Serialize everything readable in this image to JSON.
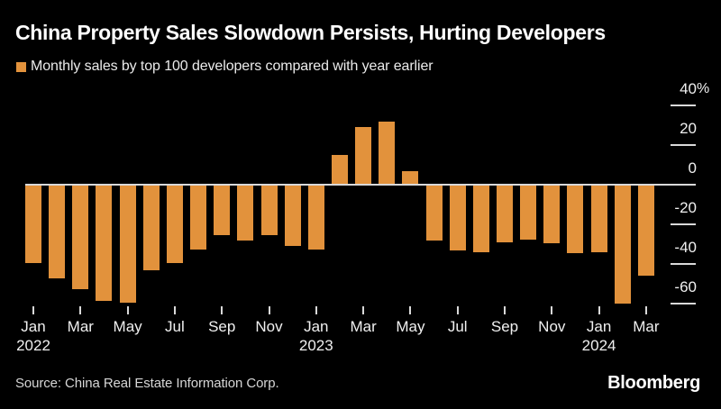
{
  "header": {
    "title": "China Property Sales Slowdown Persists, Hurting Developers",
    "legend_label": "Monthly sales by top 100 developers compared with year earlier"
  },
  "footer": {
    "source": "Source: China Real Estate Information Corp.",
    "brand": "Bloomberg"
  },
  "colors": {
    "background": "#000000",
    "bar": "#e2923c",
    "axis": "#d9d9d9",
    "title_text": "#ffffff",
    "label_text": "#f0f0f0",
    "source_text": "#d6d6d6"
  },
  "chart_data": {
    "type": "bar",
    "title": "China Property Sales Slowdown Persists, Hurting Developers",
    "series_label": "Monthly sales by top 100 developers compared with year earlier",
    "unit": "% year-over-year",
    "grid": "zero-line-only",
    "legend_position": "top-left",
    "y_axis_side": "right",
    "ylim": [
      -70,
      45
    ],
    "categories": [
      "Jan 2022",
      "Feb 2022",
      "Mar 2022",
      "Apr 2022",
      "May 2022",
      "Jun 2022",
      "Jul 2022",
      "Aug 2022",
      "Sep 2022",
      "Oct 2022",
      "Nov 2022",
      "Dec 2022",
      "Jan 2023",
      "Feb 2023",
      "Mar 2023",
      "Apr 2023",
      "May 2023",
      "Jun 2023",
      "Jul 2023",
      "Aug 2023",
      "Sep 2023",
      "Oct 2023",
      "Nov 2023",
      "Dec 2023",
      "Jan 2024",
      "Feb 2024",
      "Mar 2024"
    ],
    "values": [
      -39.6,
      -47.2,
      -52.7,
      -58.6,
      -59.4,
      -43.0,
      -39.7,
      -32.9,
      -25.4,
      -28.4,
      -25.5,
      -30.8,
      -32.5,
      14.9,
      29.2,
      31.6,
      6.7,
      -28.1,
      -33.1,
      -33.9,
      -29.2,
      -27.5,
      -29.6,
      -34.6,
      -34.2,
      -60.0,
      -45.8
    ],
    "y_ticks": [
      {
        "label": "40",
        "suffix": "%",
        "value": 40
      },
      {
        "label": "20",
        "suffix": "",
        "value": 20
      },
      {
        "label": "0",
        "suffix": "",
        "value": 0
      },
      {
        "label": "-20",
        "suffix": "",
        "value": -20
      },
      {
        "label": "-40",
        "suffix": "",
        "value": -40
      },
      {
        "label": "-60",
        "suffix": "",
        "value": -60
      }
    ],
    "x_ticks": [
      {
        "index": 0,
        "label": "Jan",
        "year": "2022"
      },
      {
        "index": 2,
        "label": "Mar",
        "year": ""
      },
      {
        "index": 4,
        "label": "May",
        "year": ""
      },
      {
        "index": 6,
        "label": "Jul",
        "year": ""
      },
      {
        "index": 8,
        "label": "Sep",
        "year": ""
      },
      {
        "index": 10,
        "label": "Nov",
        "year": ""
      },
      {
        "index": 12,
        "label": "Jan",
        "year": "2023"
      },
      {
        "index": 14,
        "label": "Mar",
        "year": ""
      },
      {
        "index": 16,
        "label": "May",
        "year": ""
      },
      {
        "index": 18,
        "label": "Jul",
        "year": ""
      },
      {
        "index": 20,
        "label": "Sep",
        "year": ""
      },
      {
        "index": 22,
        "label": "Nov",
        "year": ""
      },
      {
        "index": 24,
        "label": "Jan",
        "year": "2024"
      },
      {
        "index": 26,
        "label": "Mar",
        "year": ""
      }
    ]
  }
}
